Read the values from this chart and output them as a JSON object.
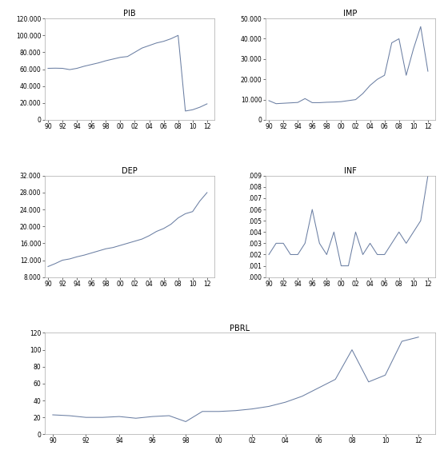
{
  "title_fontsize": 7,
  "tick_fontsize": 5.5,
  "line_color": "#6b7fa3",
  "line_width": 0.75,
  "years": [
    1990,
    1991,
    1992,
    1993,
    1994,
    1995,
    1996,
    1997,
    1998,
    1999,
    2000,
    2001,
    2002,
    2003,
    2004,
    2005,
    2006,
    2007,
    2008,
    2009,
    2010,
    2011,
    2012
  ],
  "xtick_labels": [
    "90",
    "92",
    "94",
    "96",
    "98",
    "00",
    "02",
    "04",
    "06",
    "08",
    "10",
    "12"
  ],
  "xtick_positions": [
    1990,
    1992,
    1994,
    1996,
    1998,
    2000,
    2002,
    2004,
    2006,
    2008,
    2010,
    2012
  ],
  "pib": [
    61000,
    61200,
    61000,
    59500,
    61000,
    63500,
    65500,
    67500,
    70000,
    72000,
    74000,
    75000,
    80000,
    85000,
    88000,
    91000,
    93000,
    96000,
    100000,
    10500,
    12000,
    15000,
    19000
  ],
  "pib_ylim": [
    0,
    120000
  ],
  "pib_yticks": [
    0,
    20000,
    40000,
    60000,
    80000,
    100000,
    120000
  ],
  "pib_ytick_labels": [
    "0",
    "20.000",
    "40.000",
    "60.000",
    "80.000",
    "100.000",
    "120.000"
  ],
  "imp": [
    9500,
    8000,
    8200,
    8400,
    8600,
    10500,
    8500,
    8500,
    8700,
    8800,
    9000,
    9500,
    10000,
    13000,
    17000,
    20000,
    22000,
    38000,
    40000,
    22000,
    35000,
    46000,
    24000
  ],
  "imp_ylim": [
    0,
    50000
  ],
  "imp_yticks": [
    0,
    10000,
    20000,
    30000,
    40000,
    50000
  ],
  "imp_ytick_labels": [
    "0",
    "10.000",
    "20.000",
    "30.000",
    "40.000",
    "50.000"
  ],
  "imp_title": "IMP",
  "dep": [
    10500,
    11200,
    12000,
    12300,
    12800,
    13200,
    13700,
    14200,
    14700,
    15000,
    15500,
    16000,
    16500,
    17000,
    17800,
    18800,
    19500,
    20500,
    22000,
    23000,
    23500,
    26000,
    28000
  ],
  "dep_ylim": [
    8000,
    32000
  ],
  "dep_yticks": [
    8000,
    12000,
    16000,
    20000,
    24000,
    28000,
    32000
  ],
  "dep_ytick_labels": [
    "8.000",
    "12.000",
    "16.000",
    "20.000",
    "24.000",
    "28.000",
    "32.000"
  ],
  "inf": [
    0.002,
    0.003,
    0.003,
    0.002,
    0.002,
    0.003,
    0.006,
    0.003,
    0.002,
    0.004,
    0.001,
    0.001,
    0.004,
    0.002,
    0.003,
    0.002,
    0.002,
    0.003,
    0.004,
    0.003,
    0.004,
    0.005,
    0.009
  ],
  "inf_ylim": [
    0.0,
    0.009
  ],
  "inf_yticks": [
    0.0,
    0.001,
    0.002,
    0.003,
    0.004,
    0.005,
    0.006,
    0.007,
    0.008,
    0.009
  ],
  "inf_ytick_labels": [
    ".000",
    ".001",
    ".002",
    ".003",
    ".004",
    ".005",
    ".006",
    ".007",
    ".008",
    ".009"
  ],
  "pbrl": [
    23,
    22,
    20,
    20,
    21,
    19,
    21,
    22,
    15,
    27,
    27,
    28,
    30,
    33,
    38,
    45,
    55,
    65,
    100,
    62,
    70,
    110,
    115
  ],
  "pbrl_ylim": [
    0,
    120
  ],
  "pbrl_yticks": [
    0,
    20,
    40,
    60,
    80,
    100,
    120
  ],
  "pbrl_ytick_labels": [
    "0",
    "20",
    "40",
    "60",
    "80",
    "100",
    "120"
  ]
}
